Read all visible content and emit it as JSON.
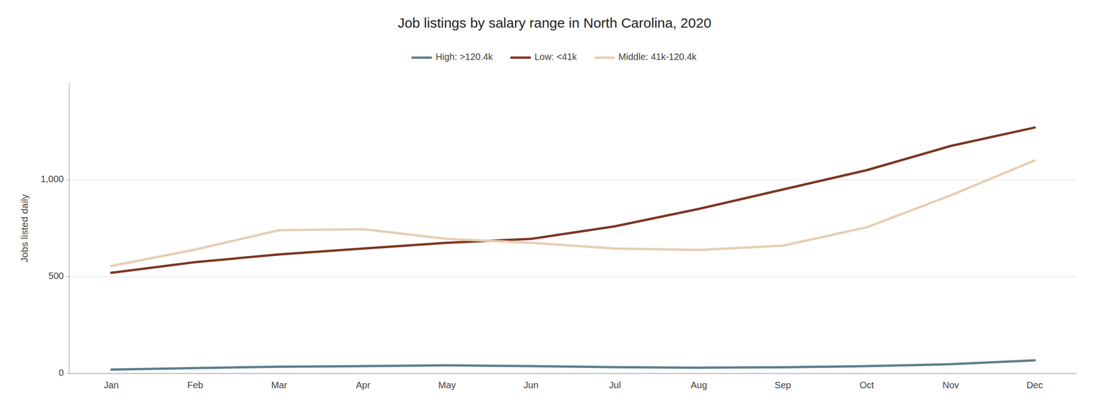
{
  "chart_data": {
    "type": "line",
    "title": "Job listings by salary range in North Carolina, 2020",
    "y_label": "Jobs listed daily",
    "categories": [
      "Jan",
      "Feb",
      "Mar",
      "Apr",
      "May",
      "Jun",
      "Jul",
      "Aug",
      "Sep",
      "Oct",
      "Nov",
      "Dec"
    ],
    "series": [
      {
        "name": "High: >120.4k",
        "color": "#5b7f8c",
        "values": [
          20,
          28,
          35,
          38,
          42,
          38,
          33,
          30,
          32,
          38,
          48,
          68
        ]
      },
      {
        "name": "Low: <41k",
        "color": "#7b3520",
        "values": [
          520,
          575,
          615,
          645,
          675,
          695,
          760,
          850,
          950,
          1050,
          1175,
          1270
        ]
      },
      {
        "name": "Middle: 41k-120.4k",
        "color": "#e8cdb0",
        "values": [
          555,
          640,
          740,
          745,
          695,
          675,
          645,
          638,
          660,
          755,
          920,
          1100
        ]
      }
    ],
    "ylim": [
      0,
      1500
    ],
    "yticks": [
      0,
      500,
      {
        "value": 1000,
        "label": "1,000"
      }
    ],
    "grid": true,
    "legend": "top"
  }
}
